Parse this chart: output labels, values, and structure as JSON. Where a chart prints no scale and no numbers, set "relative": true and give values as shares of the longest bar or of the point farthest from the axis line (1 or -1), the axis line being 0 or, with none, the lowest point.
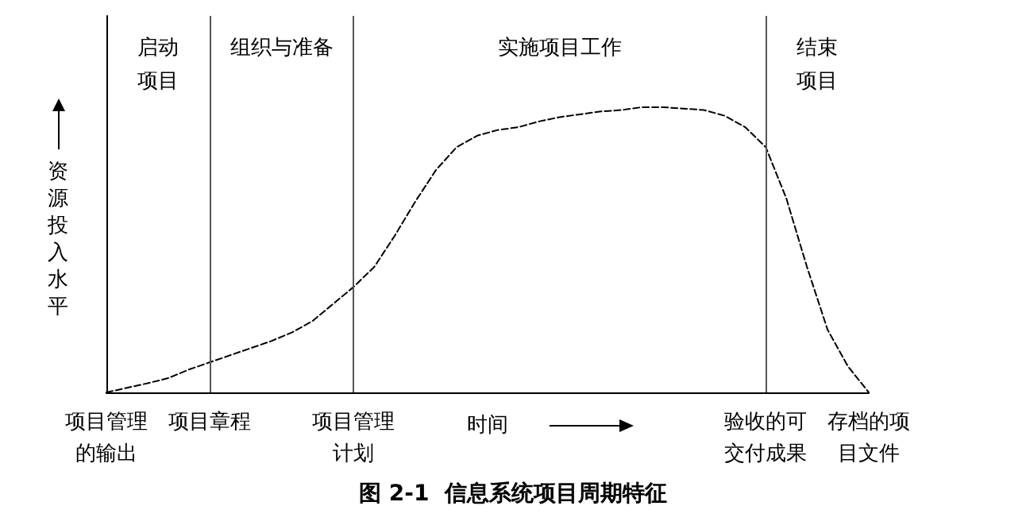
{
  "chart_data": {
    "type": "line",
    "relative": true,
    "title": "图 2-1  信息系统项目周期特征",
    "xlabel": "时间",
    "ylabel": "资源投入水平",
    "categories": [
      "项目管理的输出",
      null,
      null,
      null,
      null,
      "项目章程",
      null,
      null,
      null,
      null,
      null,
      null,
      "项目管理计划",
      null,
      null,
      null,
      null,
      null,
      null,
      null,
      null,
      null,
      null,
      null,
      null,
      null,
      null,
      null,
      null,
      null,
      null,
      null,
      "验收的可交付成果",
      null,
      null,
      null,
      null,
      "存档的项目文件"
    ],
    "values": [
      0,
      0.016,
      0.032,
      0.05,
      0.08,
      0.105,
      0.13,
      0.155,
      0.18,
      0.21,
      0.25,
      0.31,
      0.37,
      0.44,
      0.55,
      0.67,
      0.78,
      0.86,
      0.9,
      0.92,
      0.93,
      0.95,
      0.965,
      0.975,
      0.985,
      0.99,
      1,
      1,
      0.995,
      0.99,
      0.97,
      0.93,
      0.86,
      0.68,
      0.44,
      0.22,
      0.09,
      0
    ],
    "color": "#000000",
    "line_style": "dashed",
    "marker": "none",
    "grid": false,
    "ref_lines": [
      {
        "axis": "x",
        "value": "项目章程",
        "color": "#555555"
      },
      {
        "axis": "x",
        "value": "项目管理计划",
        "color": "#555555"
      },
      {
        "axis": "x",
        "value": "验收的可交付成果",
        "color": "#555555"
      }
    ],
    "annotations": [
      "启动项目",
      "组织与准备",
      "实施项目工作",
      "结束项目"
    ]
  }
}
